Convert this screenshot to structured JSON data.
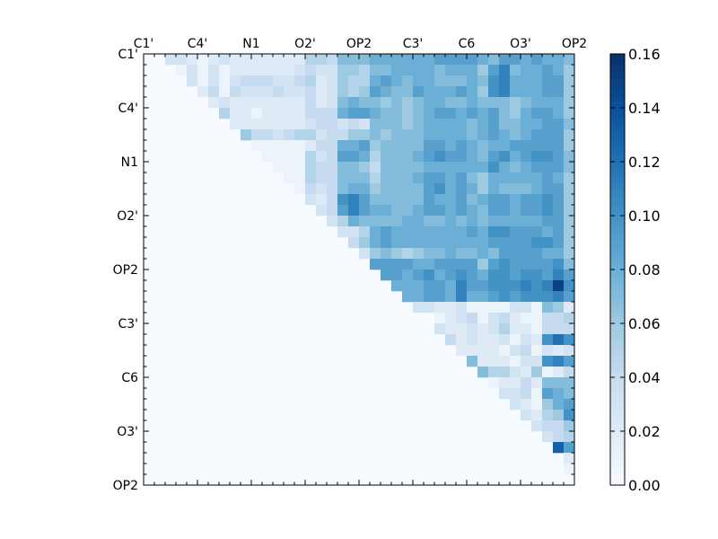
{
  "chart_data": {
    "type": "heatmap",
    "title": "",
    "xlabel": "",
    "ylabel": "",
    "n": 40,
    "tick_labels": [
      "C1'",
      "C4'",
      "N1",
      "O2'",
      "OP2",
      "C3'",
      "C6",
      "O3'",
      "OP2"
    ],
    "tick_positions": [
      0,
      5,
      10,
      15,
      20,
      25,
      30,
      35,
      40
    ],
    "colorbar": {
      "min": 0.0,
      "max": 0.16,
      "ticks": [
        0.0,
        0.02,
        0.04,
        0.06,
        0.08,
        0.1,
        0.12,
        0.14,
        0.16
      ],
      "tick_labels": [
        "0.00",
        "0.02",
        "0.04",
        "0.06",
        "0.08",
        "0.10",
        "0.12",
        "0.14",
        "0.16"
      ]
    },
    "colormap": [
      "#f7fbff",
      "#deebf7",
      "#c6dbef",
      "#9ecae1",
      "#6baed6",
      "#4292c6",
      "#2171b5",
      "#08519c",
      "#08306b"
    ],
    "matrix_rows": [
      "0 0 0.03 0.03 0.02 0.01 0.02 0.03 0.02 0.02 0.02 0.02 0.02 0.02 0.02 0.05 0.05 0.04 0.07 0.07 0.07 0.08 0.08 0.08 0.08 0.08 0.08 0.09 0.09 0.09 0.09 0.08 0.07 0.09 0.09 0.08 0.09 0.08 0.08 0.07",
      "0 0 0 0.01 0.03 0.01 0.03 0.01 0.02 0.02 0.02 0.02 0.02 0.02 0.03 0.04 0.03 0.03 0.06 0.06 0.05 0.07 0.07 0.08 0.08 0.08 0.08 0.07 0.08 0.08 0.08 0.06 0.09 0.11 0.07 0.08 0.08 0.09 0.08 0.06",
      "0 0 0 0 0.03 0.01 0.03 0.01 0.03 0.04 0.04 0.04 0.03 0.03 0.04 0.05 0.02 0.03 0.06 0.05 0.05 0.08 0.09 0.08 0.07 0.08 0.08 0.07 0.07 0.07 0.08 0.07 0.10 0.11 0.08 0.08 0.08 0.09 0.09 0.06",
      "0 0 0 0 0 0.02 0.04 0.01 0.04 0.03 0.03 0.03 0.04 0.03 0.03 0.04 0.02 0.03 0.06 0.05 0.06 0.09 0.08 0.07 0.07 0.09 0.08 0.08 0.08 0.09 0.08 0.06 0.10 0.11 0.08 0.08 0.08 0.09 0.09 0.06",
      "0 0 0 0 0 0 0.02 0.03 0.02 0.02 0.02 0.02 0.02 0.02 0.02 0.04 0.02 0.03 0.07 0.08 0.07 0.07 0.06 0.07 0.06 0.07 0.08 0.08 0.07 0.07 0.08 0.07 0.07 0.07 0.06 0.07 0.08 0.08 0.08 0.06",
      "0 0 0 0 0 0 0 0.05 0.02 0.02 0.01 0.02 0.02 0.02 0.02 0.04 0.04 0.04 0.08 0.09 0.09 0.08 0.07 0.07 0.06 0.07 0.08 0.09 0.09 0.08 0.09 0.08 0.09 0.07 0.06 0.08 0.09 0.09 0.08 0.06",
      "0 0 0 0 0 0 0 0 0.02 0.02 0.02 0.02 0.02 0.02 0.02 0.03 0.04 0.04 0.03 0.04 0.03 0.07 0.07 0.07 0.06 0.07 0.08 0.08 0.08 0.08 0.07 0.08 0.09 0.07 0.07 0.08 0.08 0.09 0.09 0.07",
      "0 0 0 0 0 0 0 0 0 0.06 0.04 0.04 0.03 0.04 0.05 0.05 0.03 0.04 0.04 0.06 0.06 0.07 0.06 0.07 0.07 0.07 0.08 0.08 0.08 0.08 0.07 0.08 0.09 0.08 0.07 0.08 0.09 0.09 0.09 0.06",
      "0 0 0 0 0 0 0 0 0 0 0.01 0.01 0.01 0.01 0.01 0.02 0.04 0.04 0.08 0.08 0.09 0.06 0.07 0.07 0.07 0.07 0.09 0.09 0.08 0.09 0.08 0.07 0.08 0.08 0.09 0.09 0.09 0.09 0.09 0.06",
      "0 0 0 0 0 0 0 0 0 0 0 0.01 0.01 0.01 0.01 0.05 0.03 0.04 0.09 0.09 0.08 0.05 0.07 0.07 0.07 0.08 0.09 0.10 0.09 0.09 0.08 0.07 0.09 0.10 0.08 0.09 0.10 0.10 0.09 0.07",
      "0 0 0 0 0 0 0 0 0 0 0 0 0.01 0.01 0.01 0.05 0.04 0.04 0.07 0.07 0.06 0.04 0.07 0.07 0.07 0.07 0.08 0.08 0.08 0.08 0.08 0.08 0.10 0.08 0.07 0.08 0.09 0.09 0.09 0.07",
      "0 0 0 0 0 0 0 0 0 0 0 0 0 0.01 0.01 0.05 0.04 0.04 0.07 0.07 0.07 0.05 0.07 0.07 0.07 0.08 0.09 0.09 0.08 0.09 0.07 0.06 0.08 0.08 0.08 0.08 0.08 0.09 0.08 0.06",
      "0 0 0 0 0 0 0 0 0 0 0 0 0 0 0.01 0.04 0.03 0.04 0.07 0.08 0.08 0.06 0.07 0.07 0.07 0.07 0.09 0.10 0.08 0.09 0.08 0.06 0.08 0.07 0.07 0.07 0.08 0.09 0.09 0.06",
      "0 0 0 0 0 0 0 0 0 0 0 0 0 0 0 0.03 0.02 0.04 0.10 0.11 0.09 0.07 0.07 0.07 0.07 0.07 0.09 0.08 0.08 0.09 0.07 0.08 0.09 0.09 0.08 0.09 0.09 0.10 0.09 0.06",
      "0 0 0 0 0 0 0 0 0 0 0 0 0 0 0 0 0.03 0.04 0.09 0.11 0.09 0.08 0.08 0.07 0.07 0.08 0.09 0.09 0.08 0.09 0.08 0.07 0.09 0.09 0.08 0.09 0.09 0.10 0.09 0.06",
      "0 0 0 0 0 0 0 0 0 0 0 0 0 0 0 0 0 0.03 0.05 0.08 0.07 0.07 0.07 0.07 0.08 0.08 0.07 0.07 0.08 0.07 0.08 0.07 0.08 0.08 0.08 0.08 0.08 0.09 0.09 0.06",
      "0 0 0 0 0 0 0 0 0 0 0 0 0 0 0 0 0 0 0.03 0.03 0.05 0.08 0.09 0.08 0.08 0.08 0.08 0.08 0.08 0.08 0.09 0.08 0.10 0.10 0.09 0.09 0.09 0.08 0.09 0.06",
      "0 0 0 0 0 0 0 0 0 0 0 0 0 0 0 0 0 0 0 0.04 0.06 0.08 0.09 0.08 0.08 0.08 0.08 0.08 0.08 0.08 0.08 0.08 0.09 0.09 0.09 0.09 0.10 0.10 0.09 0.06",
      "0 0 0 0 0 0 0 0 0 0 0 0 0 0 0 0 0 0 0 0 0.03 0.06 0.07 0.06 0.05 0.06 0.07 0.07 0.08 0.07 0.07 0.08 0.07 0.09 0.09 0.09 0.09 0.08 0.08 0.06",
      "0 0 0 0 0 0 0 0 0 0 0 0 0 0 0 0 0 0 0 0 0 0.09 0.09 0.09 0.09 0.08 0.08 0.09 0.09 0.09 0.09 0.06 0.09 0.10 0.09 0.09 0.09 0.09 0.10 0.07",
      "0 0 0 0 0 0 0 0 0 0 0 0 0 0 0 0 0 0 0 0 0 0 0.09 0.09 0.08 0.09 0.10 0.08 0.09 0.10 0.09 0.08 0.10 0.10 0.09 0.10 0.10 0.09 0.11 0.09",
      "0 0 0 0 0 0 0 0 0 0 0 0 0 0 0 0 0 0 0 0 0 0 0 0.08 0.08 0.08 0.09 0.09 0.08 0.11 0.09 0.09 0.10 0.10 0.10 0.11 0.10 0.11 0.15 0.10",
      "0 0 0 0 0 0 0 0 0 0 0 0 0 0 0 0 0 0 0 0 0 0 0 0 0.08 0.08 0.09 0.09 0.08 0.11 0.08 0.08 0.09 0.10 0.09 0.10 0.10 0.10 0.11 0.09",
      "0 0 0 0 0 0 0 0 0 0 0 0 0 0 0 0 0 0 0 0 0 0 0 0 0 0.03 0.03 0.02 0.02 0.03 0.01 0.01 0.01 0.01 0.03 0.03 0.01 0.07 0.06 0.02",
      "0 0 0 0 0 0 0 0 0 0 0 0 0 0 0 0 0 0 0 0 0 0 0 0 0 0 0 0.01 0.02 0.03 0.04 0.01 0.03 0.04 0.02 0.01 0.01 0.04 0.04 0.05",
      "0 0 0 0 0 0 0 0 0 0 0 0 0 0 0 0 0 0 0 0 0 0 0 0 0 0 0 0.03 0.02 0.02 0.03 0.02 0.03 0.05 0.02 0.02 0.01 0.04 0.04 0.04",
      "0 0 0 0 0 0 0 0 0 0 0 0 0 0 0 0 0 0 0 0 0 0 0 0 0 0 0 0 0.04 0.02 0.03 0.02 0.02 0.03 0.01 0.03 0.02 0.10 0.12 0.10",
      "0 0 0 0 0 0 0 0 0 0 0 0 0 0 0 0 0 0 0 0 0 0 0 0 0 0 0 0 0 0.02 0.02 0.02 0.02 0.01 0.03 0.04 0.01 0.03 0.02 0.03",
      "0 0 0 0 0 0 0 0 0 0 0 0 0 0 0 0 0 0 0 0 0 0 0 0 0 0 0 0 0 0 0.07 0.02 0.02 0.02 0.01 0.03 0.03 0.10 0.11 0.09",
      "0 0 0 0 0 0 0 0 0 0 0 0 0 0 0 0 0 0 0 0 0 0 0 0 0 0 0 0 0 0 0 0.07 0.05 0.05 0.03 0.02 0.06 0.01 0.02 0.04",
      "0 0 0 0 0 0 0 0 0 0 0 0 0 0 0 0 0 0 0 0 0 0 0 0 0 0 0 0 0 0 0 0 0.01 0.02 0.02 0.04 0.02 0.07 0.07 0.07",
      "0 0 0 0 0 0 0 0 0 0 0 0 0 0 0 0 0 0 0 0 0 0 0 0 0 0 0 0 0 0 0 0 0 0.03 0.03 0.04 0.01 0.09 0.08 0.07",
      "0 0 0 0 0 0 0 0 0 0 0 0 0 0 0 0 0 0 0 0 0 0 0 0 0 0 0 0 0 0 0 0 0 0 0.03 0.02 0.01 0.06 0.08 0.09",
      "0 0 0 0 0 0 0 0 0 0 0 0 0 0 0 0 0 0 0 0 0 0 0 0 0 0 0 0 0 0 0 0 0 0 0 0.03 0.02 0.05 0.06 0.10",
      "0 0 0 0 0 0 0 0 0 0 0 0 0 0 0 0 0 0 0 0 0 0 0 0 0 0 0 0 0 0 0 0 0 0 0 0 0.03 0.04 0.04 0.06",
      "0 0 0 0 0 0 0 0 0 0 0 0 0 0 0 0 0 0 0 0 0 0 0 0 0 0 0 0 0 0 0 0 0 0 0 0 0 0.03 0.04 0.05",
      "0 0 0 0 0 0 0 0 0 0 0 0 0 0 0 0 0 0 0 0 0 0 0 0 0 0 0 0 0 0 0 0 0 0 0 0 0 0 0.13 0.09",
      "0 0 0 0 0 0 0 0 0 0 0 0 0 0 0 0 0 0 0 0 0 0 0 0 0 0 0 0 0 0 0 0 0 0 0 0 0 0 0 0.02",
      "0 0 0 0 0 0 0 0 0 0 0 0 0 0 0 0 0 0 0 0 0 0 0 0 0 0 0 0 0 0 0 0 0 0 0 0 0 0 0 0.01",
      "0 0 0 0 0 0 0 0 0 0 0 0 0 0 0 0 0 0 0 0 0 0 0 0 0 0 0 0 0 0 0 0 0 0 0 0 0 0 0 0"
    ]
  }
}
